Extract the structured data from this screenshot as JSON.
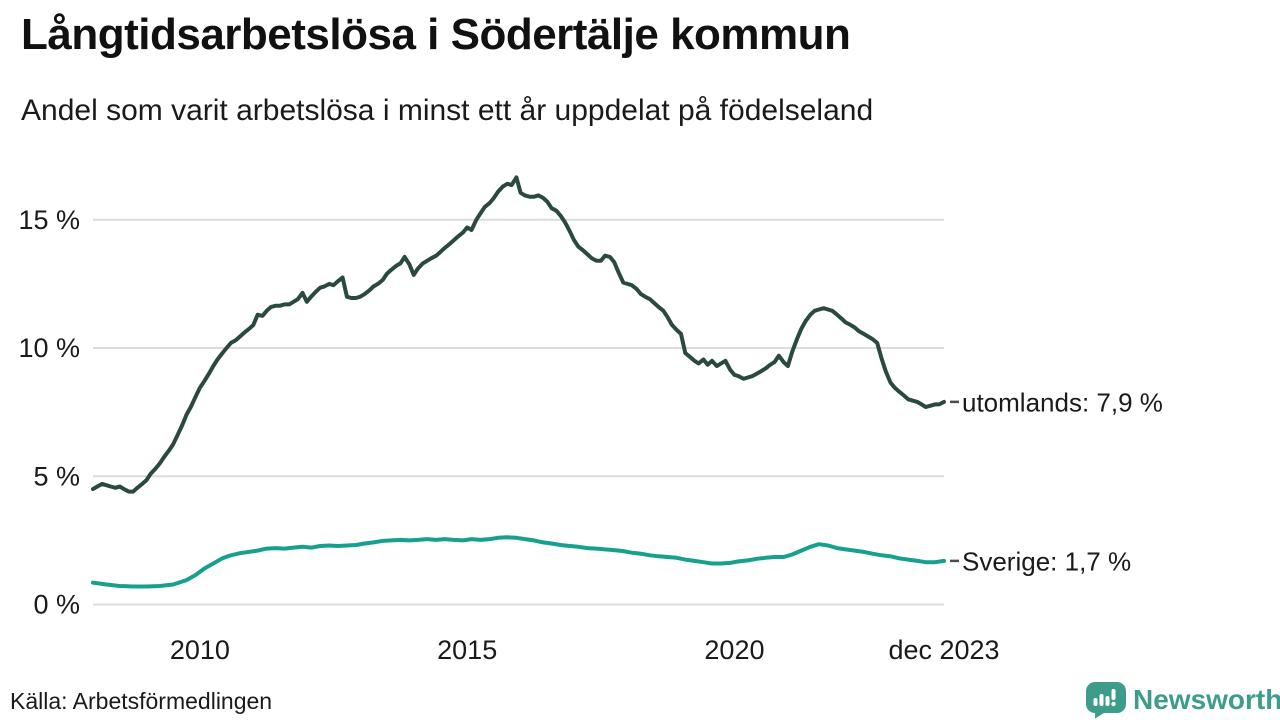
{
  "header": {
    "title": "Långtidsarbetslösa i Södertälje kommun",
    "subtitle": "Andel som varit arbetslösa i minst ett år uppdelat på födelseland"
  },
  "footer": {
    "source": "Källa: Arbetsförmedlingen",
    "brand_name": "Newsworthy"
  },
  "colors": {
    "utomlands_line": "#2b4a3e",
    "sverige_line": "#17a08e",
    "brand": "#3e9c8b",
    "grid": "#dcdcdc",
    "tick_text": "#1a1a1a",
    "leader_dash": "#4a4a4a"
  },
  "chart_data": {
    "type": "line",
    "title": "Långtidsarbetslösa i Södertälje kommun",
    "subtitle": "Andel som varit arbetslösa i minst ett år uppdelat på födelseland",
    "source": "Källa: Arbetsförmedlingen",
    "unit": "%",
    "grid": true,
    "legend_position": "end-of-line",
    "x": {
      "range": [
        2008.0,
        2023.92
      ],
      "ticks": [
        {
          "value": 2010,
          "label": "2010"
        },
        {
          "value": 2015,
          "label": "2015"
        },
        {
          "value": 2020,
          "label": "2020"
        },
        {
          "value": 2023.92,
          "label": "dec 2023"
        }
      ]
    },
    "y": {
      "range": [
        0,
        17.2
      ],
      "ticks": [
        {
          "value": 0,
          "label": "0 %"
        },
        {
          "value": 5,
          "label": "5 %"
        },
        {
          "value": 10,
          "label": "10 %"
        },
        {
          "value": 15,
          "label": "15 %"
        }
      ]
    },
    "series": [
      {
        "name": "utomlands",
        "end_label": "utomlands: 7,9 %",
        "last_value": 7.9,
        "color": "#2b4a3e",
        "points": [
          [
            2008.0,
            4.5
          ],
          [
            2008.08,
            4.6
          ],
          [
            2008.17,
            4.7
          ],
          [
            2008.25,
            4.65
          ],
          [
            2008.33,
            4.6
          ],
          [
            2008.42,
            4.55
          ],
          [
            2008.5,
            4.6
          ],
          [
            2008.58,
            4.5
          ],
          [
            2008.67,
            4.4
          ],
          [
            2008.75,
            4.4
          ],
          [
            2008.83,
            4.55
          ],
          [
            2008.92,
            4.7
          ],
          [
            2009.0,
            4.85
          ],
          [
            2009.08,
            5.1
          ],
          [
            2009.17,
            5.3
          ],
          [
            2009.25,
            5.5
          ],
          [
            2009.33,
            5.75
          ],
          [
            2009.42,
            6.0
          ],
          [
            2009.5,
            6.25
          ],
          [
            2009.58,
            6.6
          ],
          [
            2009.67,
            7.0
          ],
          [
            2009.75,
            7.4
          ],
          [
            2009.83,
            7.7
          ],
          [
            2009.92,
            8.1
          ],
          [
            2010.0,
            8.45
          ],
          [
            2010.08,
            8.7
          ],
          [
            2010.17,
            9.0
          ],
          [
            2010.25,
            9.3
          ],
          [
            2010.33,
            9.55
          ],
          [
            2010.42,
            9.8
          ],
          [
            2010.5,
            10.0
          ],
          [
            2010.58,
            10.2
          ],
          [
            2010.67,
            10.3
          ],
          [
            2010.75,
            10.45
          ],
          [
            2010.83,
            10.6
          ],
          [
            2010.92,
            10.75
          ],
          [
            2011.0,
            10.9
          ],
          [
            2011.08,
            11.3
          ],
          [
            2011.17,
            11.25
          ],
          [
            2011.25,
            11.45
          ],
          [
            2011.33,
            11.6
          ],
          [
            2011.42,
            11.65
          ],
          [
            2011.5,
            11.65
          ],
          [
            2011.58,
            11.7
          ],
          [
            2011.67,
            11.7
          ],
          [
            2011.75,
            11.8
          ],
          [
            2011.83,
            11.9
          ],
          [
            2011.92,
            12.15
          ],
          [
            2012.0,
            11.8
          ],
          [
            2012.08,
            12.0
          ],
          [
            2012.17,
            12.2
          ],
          [
            2012.25,
            12.35
          ],
          [
            2012.33,
            12.4
          ],
          [
            2012.42,
            12.5
          ],
          [
            2012.5,
            12.45
          ],
          [
            2012.58,
            12.6
          ],
          [
            2012.67,
            12.75
          ],
          [
            2012.75,
            12.0
          ],
          [
            2012.83,
            11.95
          ],
          [
            2012.92,
            11.95
          ],
          [
            2013.0,
            12.0
          ],
          [
            2013.08,
            12.1
          ],
          [
            2013.17,
            12.25
          ],
          [
            2013.25,
            12.4
          ],
          [
            2013.33,
            12.5
          ],
          [
            2013.42,
            12.65
          ],
          [
            2013.5,
            12.9
          ],
          [
            2013.58,
            13.05
          ],
          [
            2013.67,
            13.2
          ],
          [
            2013.75,
            13.3
          ],
          [
            2013.83,
            13.55
          ],
          [
            2013.92,
            13.25
          ],
          [
            2014.0,
            12.85
          ],
          [
            2014.08,
            13.1
          ],
          [
            2014.17,
            13.3
          ],
          [
            2014.25,
            13.4
          ],
          [
            2014.33,
            13.5
          ],
          [
            2014.42,
            13.6
          ],
          [
            2014.5,
            13.75
          ],
          [
            2014.58,
            13.9
          ],
          [
            2014.67,
            14.05
          ],
          [
            2014.75,
            14.2
          ],
          [
            2014.83,
            14.35
          ],
          [
            2014.92,
            14.5
          ],
          [
            2015.0,
            14.7
          ],
          [
            2015.08,
            14.6
          ],
          [
            2015.17,
            15.0
          ],
          [
            2015.25,
            15.25
          ],
          [
            2015.33,
            15.5
          ],
          [
            2015.42,
            15.65
          ],
          [
            2015.5,
            15.85
          ],
          [
            2015.58,
            16.1
          ],
          [
            2015.67,
            16.3
          ],
          [
            2015.75,
            16.4
          ],
          [
            2015.83,
            16.35
          ],
          [
            2015.92,
            16.65
          ],
          [
            2016.0,
            16.05
          ],
          [
            2016.08,
            15.95
          ],
          [
            2016.17,
            15.9
          ],
          [
            2016.25,
            15.9
          ],
          [
            2016.33,
            15.95
          ],
          [
            2016.42,
            15.85
          ],
          [
            2016.5,
            15.7
          ],
          [
            2016.58,
            15.45
          ],
          [
            2016.67,
            15.35
          ],
          [
            2016.75,
            15.15
          ],
          [
            2016.83,
            14.9
          ],
          [
            2016.92,
            14.55
          ],
          [
            2017.0,
            14.2
          ],
          [
            2017.08,
            13.95
          ],
          [
            2017.17,
            13.8
          ],
          [
            2017.25,
            13.65
          ],
          [
            2017.33,
            13.5
          ],
          [
            2017.42,
            13.4
          ],
          [
            2017.5,
            13.4
          ],
          [
            2017.58,
            13.6
          ],
          [
            2017.67,
            13.55
          ],
          [
            2017.75,
            13.35
          ],
          [
            2017.83,
            12.95
          ],
          [
            2017.92,
            12.55
          ],
          [
            2018.0,
            12.5
          ],
          [
            2018.08,
            12.45
          ],
          [
            2018.17,
            12.3
          ],
          [
            2018.25,
            12.1
          ],
          [
            2018.33,
            12.0
          ],
          [
            2018.42,
            11.9
          ],
          [
            2018.5,
            11.75
          ],
          [
            2018.58,
            11.6
          ],
          [
            2018.67,
            11.45
          ],
          [
            2018.75,
            11.2
          ],
          [
            2018.83,
            10.9
          ],
          [
            2018.92,
            10.7
          ],
          [
            2019.0,
            10.55
          ],
          [
            2019.08,
            9.8
          ],
          [
            2019.17,
            9.65
          ],
          [
            2019.25,
            9.5
          ],
          [
            2019.33,
            9.4
          ],
          [
            2019.42,
            9.55
          ],
          [
            2019.5,
            9.35
          ],
          [
            2019.58,
            9.5
          ],
          [
            2019.67,
            9.3
          ],
          [
            2019.75,
            9.4
          ],
          [
            2019.83,
            9.5
          ],
          [
            2019.92,
            9.15
          ],
          [
            2020.0,
            8.95
          ],
          [
            2020.08,
            8.9
          ],
          [
            2020.17,
            8.8
          ],
          [
            2020.25,
            8.85
          ],
          [
            2020.33,
            8.9
          ],
          [
            2020.42,
            9.0
          ],
          [
            2020.5,
            9.1
          ],
          [
            2020.58,
            9.2
          ],
          [
            2020.67,
            9.35
          ],
          [
            2020.75,
            9.45
          ],
          [
            2020.83,
            9.7
          ],
          [
            2020.92,
            9.45
          ],
          [
            2021.0,
            9.3
          ],
          [
            2021.08,
            9.85
          ],
          [
            2021.17,
            10.35
          ],
          [
            2021.25,
            10.75
          ],
          [
            2021.33,
            11.05
          ],
          [
            2021.42,
            11.3
          ],
          [
            2021.5,
            11.45
          ],
          [
            2021.58,
            11.5
          ],
          [
            2021.67,
            11.55
          ],
          [
            2021.75,
            11.5
          ],
          [
            2021.83,
            11.45
          ],
          [
            2021.92,
            11.3
          ],
          [
            2022.0,
            11.15
          ],
          [
            2022.08,
            11.0
          ],
          [
            2022.17,
            10.9
          ],
          [
            2022.25,
            10.8
          ],
          [
            2022.33,
            10.65
          ],
          [
            2022.42,
            10.55
          ],
          [
            2022.5,
            10.45
          ],
          [
            2022.58,
            10.35
          ],
          [
            2022.67,
            10.2
          ],
          [
            2022.75,
            9.6
          ],
          [
            2022.83,
            9.1
          ],
          [
            2022.92,
            8.65
          ],
          [
            2023.0,
            8.45
          ],
          [
            2023.08,
            8.3
          ],
          [
            2023.17,
            8.15
          ],
          [
            2023.25,
            8.0
          ],
          [
            2023.33,
            7.95
          ],
          [
            2023.42,
            7.9
          ],
          [
            2023.5,
            7.8
          ],
          [
            2023.58,
            7.7
          ],
          [
            2023.67,
            7.75
          ],
          [
            2023.75,
            7.8
          ],
          [
            2023.83,
            7.8
          ],
          [
            2023.92,
            7.9
          ]
        ]
      },
      {
        "name": "Sverige",
        "end_label": "Sverige: 1,7 %",
        "last_value": 1.7,
        "color": "#17a08e",
        "points": [
          [
            2008.0,
            0.85
          ],
          [
            2008.25,
            0.78
          ],
          [
            2008.5,
            0.72
          ],
          [
            2008.75,
            0.7
          ],
          [
            2009.0,
            0.7
          ],
          [
            2009.25,
            0.72
          ],
          [
            2009.5,
            0.78
          ],
          [
            2009.75,
            0.95
          ],
          [
            2009.92,
            1.15
          ],
          [
            2010.08,
            1.4
          ],
          [
            2010.25,
            1.6
          ],
          [
            2010.42,
            1.8
          ],
          [
            2010.58,
            1.92
          ],
          [
            2010.75,
            2.0
          ],
          [
            2010.92,
            2.05
          ],
          [
            2011.08,
            2.1
          ],
          [
            2011.25,
            2.18
          ],
          [
            2011.42,
            2.2
          ],
          [
            2011.58,
            2.18
          ],
          [
            2011.75,
            2.22
          ],
          [
            2011.92,
            2.25
          ],
          [
            2012.08,
            2.22
          ],
          [
            2012.25,
            2.28
          ],
          [
            2012.42,
            2.3
          ],
          [
            2012.58,
            2.28
          ],
          [
            2012.75,
            2.3
          ],
          [
            2012.92,
            2.32
          ],
          [
            2013.08,
            2.38
          ],
          [
            2013.25,
            2.42
          ],
          [
            2013.42,
            2.48
          ],
          [
            2013.58,
            2.5
          ],
          [
            2013.75,
            2.52
          ],
          [
            2013.92,
            2.5
          ],
          [
            2014.08,
            2.52
          ],
          [
            2014.25,
            2.55
          ],
          [
            2014.42,
            2.52
          ],
          [
            2014.58,
            2.55
          ],
          [
            2014.75,
            2.52
          ],
          [
            2014.92,
            2.5
          ],
          [
            2015.08,
            2.55
          ],
          [
            2015.25,
            2.52
          ],
          [
            2015.42,
            2.55
          ],
          [
            2015.58,
            2.6
          ],
          [
            2015.75,
            2.62
          ],
          [
            2015.92,
            2.6
          ],
          [
            2016.08,
            2.55
          ],
          [
            2016.25,
            2.5
          ],
          [
            2016.42,
            2.42
          ],
          [
            2016.58,
            2.38
          ],
          [
            2016.75,
            2.32
          ],
          [
            2016.92,
            2.28
          ],
          [
            2017.08,
            2.25
          ],
          [
            2017.25,
            2.2
          ],
          [
            2017.42,
            2.18
          ],
          [
            2017.58,
            2.15
          ],
          [
            2017.75,
            2.12
          ],
          [
            2017.92,
            2.08
          ],
          [
            2018.08,
            2.02
          ],
          [
            2018.25,
            1.98
          ],
          [
            2018.42,
            1.92
          ],
          [
            2018.58,
            1.88
          ],
          [
            2018.75,
            1.85
          ],
          [
            2018.92,
            1.82
          ],
          [
            2019.08,
            1.75
          ],
          [
            2019.25,
            1.7
          ],
          [
            2019.42,
            1.65
          ],
          [
            2019.58,
            1.6
          ],
          [
            2019.75,
            1.6
          ],
          [
            2019.92,
            1.62
          ],
          [
            2020.08,
            1.68
          ],
          [
            2020.25,
            1.72
          ],
          [
            2020.42,
            1.78
          ],
          [
            2020.58,
            1.82
          ],
          [
            2020.75,
            1.85
          ],
          [
            2020.92,
            1.85
          ],
          [
            2021.08,
            1.95
          ],
          [
            2021.25,
            2.1
          ],
          [
            2021.42,
            2.25
          ],
          [
            2021.58,
            2.35
          ],
          [
            2021.75,
            2.3
          ],
          [
            2021.92,
            2.2
          ],
          [
            2022.08,
            2.15
          ],
          [
            2022.25,
            2.1
          ],
          [
            2022.42,
            2.05
          ],
          [
            2022.58,
            1.98
          ],
          [
            2022.75,
            1.92
          ],
          [
            2022.92,
            1.88
          ],
          [
            2023.08,
            1.8
          ],
          [
            2023.25,
            1.75
          ],
          [
            2023.42,
            1.7
          ],
          [
            2023.58,
            1.65
          ],
          [
            2023.75,
            1.65
          ],
          [
            2023.92,
            1.7
          ]
        ]
      }
    ]
  }
}
